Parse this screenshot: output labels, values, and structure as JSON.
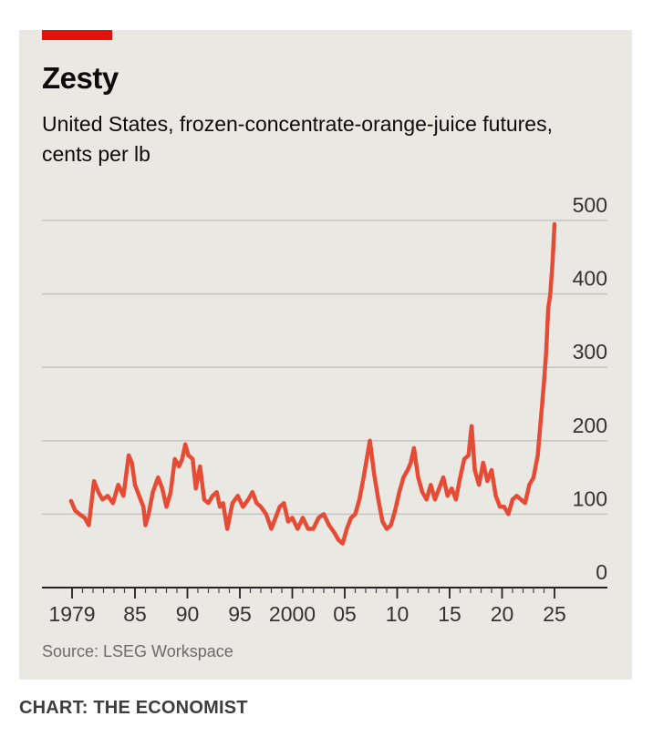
{
  "header": {
    "title": "Zesty",
    "subtitle": "United States, frozen-concentrate-orange-juice futures, cents per lb"
  },
  "footer": {
    "source": "Source: LSEG Workspace",
    "credit": "CHART: THE ECONOMIST"
  },
  "colors": {
    "accent": "#e3120b",
    "line": "#e64b35",
    "panel": "#e9e8e3",
    "grid": "#c5c4bf"
  },
  "chart_data": {
    "type": "line",
    "title": "Zesty",
    "subtitle": "United States, frozen-concentrate-orange-juice futures, cents per lb",
    "xlabel": "",
    "ylabel": "",
    "xlim": [
      1979,
      2026
    ],
    "ylim": [
      0,
      500
    ],
    "y_ticks": [
      {
        "value": 0,
        "label": "0"
      },
      {
        "value": 100,
        "label": "100"
      },
      {
        "value": 200,
        "label": "200"
      },
      {
        "value": 300,
        "label": "300"
      },
      {
        "value": 400,
        "label": "400"
      },
      {
        "value": 500,
        "label": "500"
      }
    ],
    "x_ticks": [
      {
        "value": 1979,
        "label": "1979"
      },
      {
        "value": 1985,
        "label": "85"
      },
      {
        "value": 1990,
        "label": "90"
      },
      {
        "value": 1995,
        "label": "95"
      },
      {
        "value": 2000,
        "label": "2000"
      },
      {
        "value": 2005,
        "label": "05"
      },
      {
        "value": 2010,
        "label": "10"
      },
      {
        "value": 2015,
        "label": "15"
      },
      {
        "value": 2020,
        "label": "20"
      },
      {
        "value": 2025,
        "label": "25"
      }
    ],
    "grid": "horizontal",
    "y_axis_side": "right",
    "series": [
      {
        "x": [
          1978.9,
          1979.3,
          1979.7,
          1980.2,
          1980.6,
          1981.1,
          1981.5,
          1981.9,
          1982.4,
          1982.9,
          1983.4,
          1983.9,
          1984.4,
          1984.7,
          1985.0,
          1985.4,
          1985.8,
          1986.0,
          1986.3,
          1986.7,
          1987.2,
          1987.6,
          1988.0,
          1988.4,
          1988.8,
          1989.2,
          1989.5,
          1989.8,
          1990.1,
          1990.5,
          1990.8,
          1991.2,
          1991.6,
          1992.0,
          1992.4,
          1992.8,
          1993.1,
          1993.4,
          1993.8,
          1994.3,
          1994.8,
          1995.3,
          1995.8,
          1996.2,
          1996.6,
          1997.0,
          1997.5,
          1998.0,
          1998.4,
          1998.8,
          1999.2,
          1999.6,
          2000.0,
          2000.5,
          2001.0,
          2001.5,
          2002.0,
          2002.5,
          2003.0,
          2003.5,
          2004.0,
          2004.4,
          2004.8,
          2005.2,
          2005.6,
          2006.0,
          2006.4,
          2006.8,
          2007.1,
          2007.4,
          2007.8,
          2008.2,
          2008.6,
          2009.0,
          2009.4,
          2009.8,
          2010.2,
          2010.6,
          2011.0,
          2011.3,
          2011.6,
          2012.0,
          2012.4,
          2012.8,
          2013.2,
          2013.6,
          2014.0,
          2014.4,
          2014.8,
          2015.2,
          2015.6,
          2016.0,
          2016.4,
          2016.8,
          2017.1,
          2017.4,
          2017.8,
          2018.2,
          2018.6,
          2019.0,
          2019.4,
          2019.8,
          2020.2,
          2020.6,
          2021.0,
          2021.4,
          2021.8,
          2022.2,
          2022.6,
          2023.0,
          2023.4,
          2023.7,
          2024.0,
          2024.2,
          2024.4,
          2024.6,
          2024.8,
          2025.0
        ],
        "y": [
          118,
          105,
          100,
          95,
          85,
          145,
          130,
          120,
          125,
          115,
          140,
          125,
          180,
          170,
          140,
          125,
          110,
          85,
          100,
          130,
          150,
          135,
          110,
          130,
          175,
          165,
          175,
          195,
          180,
          175,
          135,
          165,
          120,
          115,
          125,
          130,
          110,
          115,
          80,
          115,
          125,
          110,
          120,
          130,
          115,
          110,
          100,
          80,
          95,
          110,
          115,
          90,
          95,
          80,
          95,
          80,
          80,
          95,
          100,
          85,
          75,
          65,
          60,
          80,
          95,
          100,
          120,
          150,
          175,
          200,
          155,
          120,
          90,
          80,
          85,
          105,
          130,
          150,
          160,
          170,
          190,
          150,
          130,
          120,
          140,
          120,
          135,
          150,
          125,
          135,
          120,
          150,
          175,
          180,
          220,
          160,
          140,
          170,
          145,
          160,
          125,
          110,
          110,
          100,
          120,
          125,
          120,
          115,
          140,
          150,
          180,
          230,
          280,
          320,
          380,
          400,
          440,
          495
        ]
      }
    ]
  }
}
